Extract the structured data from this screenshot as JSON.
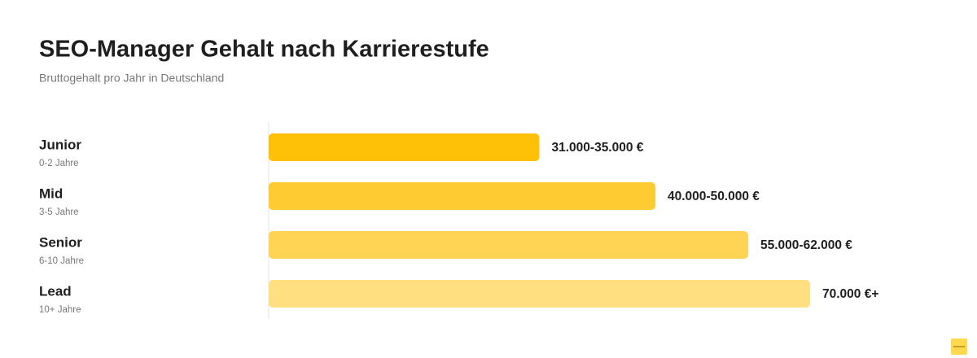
{
  "chart_data": {
    "type": "bar",
    "orientation": "horizontal",
    "title": "SEO-Manager Gehalt nach Karrierestufe",
    "subtitle": "Bruttogehalt pro Jahr in Deutschland",
    "categories": [
      "Junior",
      "Mid",
      "Senior",
      "Lead"
    ],
    "category_sublabels": [
      "0-2 Jahre",
      "3-5 Jahre",
      "6-10 Jahre",
      "10+ Jahre"
    ],
    "values": [
      35000,
      50000,
      62000,
      70000
    ],
    "value_labels": [
      "31.000-35.000 €",
      "40.000-50.000 €",
      "55.000-62.000 €",
      "70.000 €+"
    ],
    "colors": [
      "#ffc107",
      "#ffcb33",
      "#ffd454",
      "#ffdf80"
    ]
  }
}
